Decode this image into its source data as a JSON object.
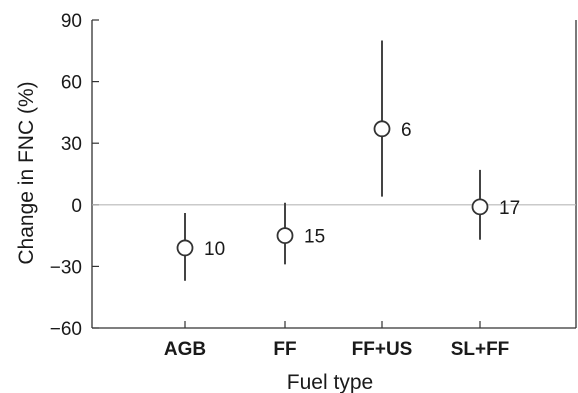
{
  "chart_data": {
    "type": "scatter",
    "xlabel": "Fuel type",
    "ylabel": "Change in FNC (%)",
    "categories": [
      "AGB",
      "FF",
      "FF+US",
      "SL+FF"
    ],
    "ylim": [
      -60,
      90
    ],
    "yticks": [
      "90",
      "60",
      "30",
      "0",
      "−30",
      "−60"
    ],
    "yticks_values": [
      90,
      60,
      30,
      0,
      -30,
      -60
    ],
    "grid": false,
    "reference_line": 0,
    "points": [
      {
        "category": "AGB",
        "mean": -21,
        "lower": -37,
        "upper": -4,
        "n": "10"
      },
      {
        "category": "FF",
        "mean": -15,
        "lower": -29,
        "upper": 1,
        "n": "15"
      },
      {
        "category": "FF+US",
        "mean": 37,
        "lower": 4,
        "upper": 80,
        "n": "6"
      },
      {
        "category": "SL+FF",
        "mean": -1,
        "lower": -17,
        "upper": 17,
        "n": "17"
      }
    ],
    "colors": {
      "axis": "#333333",
      "marker_edge": "#333333",
      "marker_fill": "#ffffff",
      "errorbar": "#444444",
      "zero_line": "#b8b8b8"
    }
  }
}
